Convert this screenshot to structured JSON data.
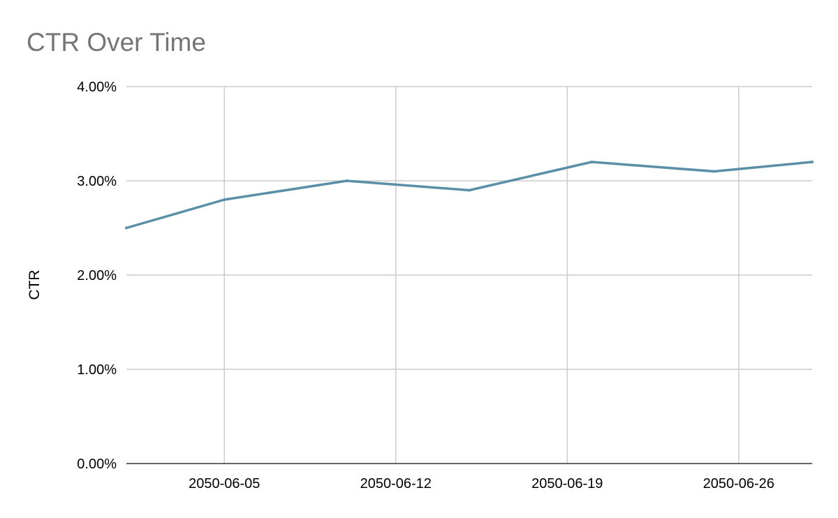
{
  "chart_data": {
    "type": "line",
    "title": "CTR Over Time",
    "xlabel": "",
    "ylabel": "CTR",
    "x": [
      "2050-06-01",
      "2050-06-05",
      "2050-06-10",
      "2050-06-15",
      "2050-06-20",
      "2050-06-25",
      "2050-06-29"
    ],
    "series": [
      {
        "values": [
          2.5,
          2.8,
          3.0,
          2.9,
          3.2,
          3.1,
          3.2
        ]
      }
    ],
    "ylim": [
      0,
      4
    ],
    "xlim": [
      "2050-06-01",
      "2050-06-29"
    ],
    "yticks": [
      0,
      1,
      2,
      3,
      4
    ],
    "ytick_labels": [
      "0.00%",
      "1.00%",
      "2.00%",
      "3.00%",
      "4.00%"
    ],
    "xticks": [
      "2050-06-05",
      "2050-06-12",
      "2050-06-19",
      "2050-06-26"
    ],
    "xtick_labels": [
      "2050-06-05",
      "2050-06-12",
      "2050-06-19",
      "2050-06-26"
    ],
    "grid": true,
    "legend": "none",
    "colors": {
      "line": "#5b8fa8",
      "grid": "#cccccc",
      "axis": "#333333",
      "title": "#757575"
    }
  }
}
